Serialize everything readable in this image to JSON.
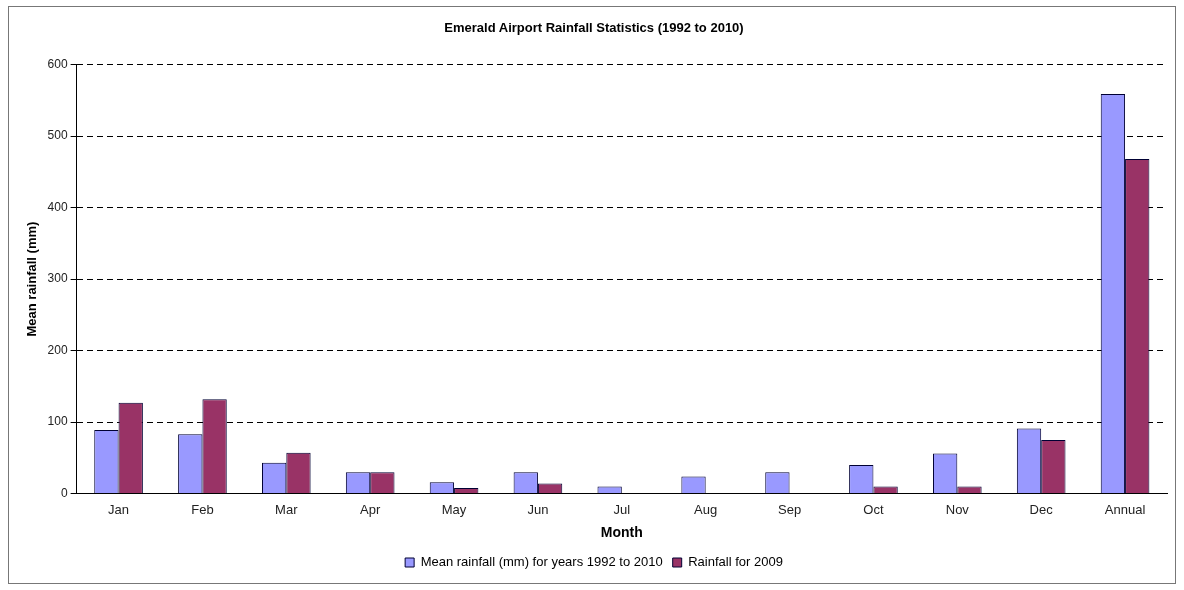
{
  "chart_data": {
    "type": "bar",
    "title": "Emerald Airport Rainfall Statistics (1992 to 2010)",
    "xlabel": "Month",
    "ylabel": "Mean rainfall (mm)",
    "categories": [
      "Jan",
      "Feb",
      "Mar",
      "Apr",
      "May",
      "Jun",
      "Jul",
      "Aug",
      "Sep",
      "Oct",
      "Nov",
      "Dec",
      "Annual"
    ],
    "series": [
      {
        "name": "Mean rainfall (mm) for years 1992 to 2010",
        "color": "#9999ff",
        "values": [
          89,
          83,
          43,
          30,
          16,
          30,
          10,
          24,
          30,
          40,
          56,
          91,
          559
        ]
      },
      {
        "name": "Rainfall for 2009",
        "color": "#993366",
        "values": [
          127,
          132,
          57,
          30,
          8,
          14,
          0,
          0,
          0,
          10,
          10,
          75,
          468
        ]
      }
    ],
    "ylim": [
      0,
      600
    ],
    "yticks": [
      0,
      100,
      200,
      300,
      400,
      500,
      600
    ],
    "grid": "y",
    "line_style": "dashed",
    "legend": "bottom"
  }
}
